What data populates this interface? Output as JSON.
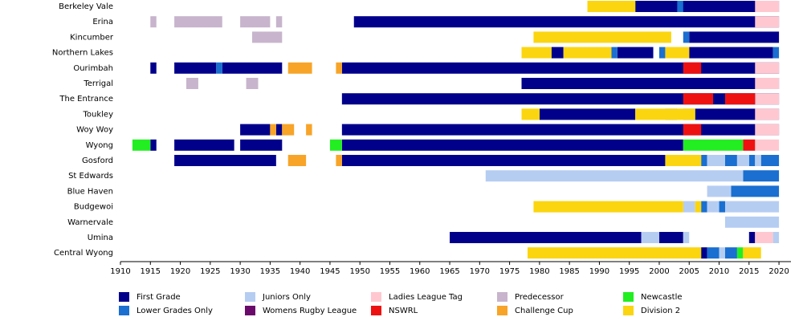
{
  "chart_data": {
    "type": "timeline",
    "categories": [
      "Berkeley Vale",
      "Erina",
      "Kincumber",
      "Northern Lakes",
      "Ourimbah",
      "Terrigal",
      "The Entrance",
      "Toukley",
      "Woy Woy",
      "Wyong",
      "Gosford",
      "St Edwards",
      "Blue Haven",
      "Budgewoi",
      "Warnervale",
      "Umina",
      "Central Wyong"
    ],
    "xlim": [
      1910,
      2022
    ],
    "xticks": [
      1910,
      1915,
      1920,
      1925,
      1930,
      1935,
      1940,
      1945,
      1950,
      1955,
      1960,
      1965,
      1970,
      1975,
      1980,
      1985,
      1990,
      1995,
      2000,
      2005,
      2010,
      2015,
      2020
    ],
    "series": [
      {
        "name": "First Grade",
        "color": "#00008b",
        "values": [
          [
            [
              1996,
              2020
            ]
          ],
          [
            [
              1949,
              2020
            ]
          ],
          [
            [
              2005,
              2020
            ]
          ],
          [
            [
              1982,
              1984
            ],
            [
              1993,
              1999
            ],
            [
              2005,
              2019
            ]
          ],
          [
            [
              1915,
              1916
            ],
            [
              1919,
              1926
            ],
            [
              1927,
              1937
            ],
            [
              1947,
              2020
            ]
          ],
          [
            [
              1977,
              2020
            ]
          ],
          [
            [
              1947,
              2020
            ]
          ],
          [
            [
              1980,
              1996
            ],
            [
              2006,
              2020
            ]
          ],
          [
            [
              1930,
              1935
            ],
            [
              1936,
              1937
            ],
            [
              1947,
              2020
            ]
          ],
          [
            [
              1915,
              1916
            ],
            [
              1919,
              1929
            ],
            [
              1930,
              1937
            ],
            [
              1947,
              2004
            ]
          ],
          [
            [
              1919,
              1936
            ],
            [
              1947,
              2001
            ]
          ],
          [],
          [],
          [],
          [],
          [
            [
              1965,
              1997
            ],
            [
              2000,
              2004
            ],
            [
              2015,
              2016
            ]
          ],
          [
            [
              2007,
              2008
            ]
          ]
        ]
      },
      {
        "name": "Lower Grades Only",
        "color": "#1a6fd0",
        "values": [
          [
            [
              2003,
              2004
            ]
          ],
          [],
          [
            [
              2004,
              2005
            ]
          ],
          [
            [
              1992,
              1993
            ],
            [
              2000,
              2001
            ],
            [
              2019,
              2020
            ]
          ],
          [
            [
              1926,
              1927
            ]
          ],
          [],
          [],
          [
            [
              2001,
              2003
            ],
            [
              2004,
              2006
            ]
          ],
          [],
          [],
          [
            [
              2007,
              2008
            ],
            [
              2011,
              2013
            ],
            [
              2015,
              2016
            ],
            [
              2017,
              2020
            ]
          ],
          [
            [
              2014,
              2020
            ]
          ],
          [
            [
              2012,
              2020
            ]
          ],
          [
            [
              2007,
              2008
            ],
            [
              2010,
              2011
            ]
          ],
          [],
          [],
          [
            [
              2008,
              2010
            ],
            [
              2011,
              2013
            ]
          ]
        ]
      },
      {
        "name": "Juniors Only",
        "color": "#b6cdf2",
        "values": [
          [],
          [],
          [],
          [],
          [],
          [],
          [],
          [],
          [],
          [],
          [
            [
              2008,
              2011
            ],
            [
              2013,
              2015
            ],
            [
              2016,
              2017
            ]
          ],
          [
            [
              1971,
              2014
            ]
          ],
          [
            [
              2008,
              2012
            ]
          ],
          [
            [
              2004,
              2006
            ],
            [
              2008,
              2010
            ],
            [
              2011,
              2020
            ]
          ],
          [
            [
              2011,
              2020
            ]
          ],
          [
            [
              1997,
              2000
            ],
            [
              2004,
              2005
            ],
            [
              2019,
              2020
            ]
          ],
          [
            [
              2010,
              2011
            ]
          ]
        ]
      },
      {
        "name": "Womens Rugby League",
        "color": "#6a0a6a",
        "values": [
          [],
          [],
          [],
          [],
          [],
          [],
          [],
          [],
          [],
          [],
          [],
          [],
          [],
          [],
          [],
          [],
          []
        ]
      },
      {
        "name": "Ladies League Tag",
        "color": "#ffc8d0",
        "values": [
          [
            [
              2016,
              2020
            ]
          ],
          [
            [
              2016,
              2020
            ]
          ],
          [],
          [],
          [
            [
              2016,
              2020
            ]
          ],
          [
            [
              2016,
              2020
            ]
          ],
          [
            [
              2016,
              2020
            ]
          ],
          [
            [
              2016,
              2020
            ]
          ],
          [
            [
              2016,
              2020
            ]
          ],
          [
            [
              2016,
              2020
            ]
          ],
          [],
          [],
          [],
          [],
          [],
          [
            [
              2016,
              2019
            ]
          ],
          []
        ]
      },
      {
        "name": "NSWRL",
        "color": "#ee1111",
        "values": [
          [],
          [],
          [],
          [],
          [
            [
              2004,
              2007
            ]
          ],
          [],
          [
            [
              2004,
              2009
            ],
            [
              2011,
              2016
            ]
          ],
          [],
          [
            [
              2004,
              2007
            ]
          ],
          [
            [
              2014,
              2016
            ]
          ],
          [],
          [],
          [],
          [],
          [],
          [],
          []
        ]
      },
      {
        "name": "Predecessor",
        "color": "#c8b4cc",
        "values": [
          [],
          [
            [
              1915,
              1916
            ],
            [
              1919,
              1927
            ],
            [
              1930,
              1935
            ],
            [
              1936,
              1937
            ]
          ],
          [
            [
              1932,
              1937
            ]
          ],
          [],
          [],
          [
            [
              1921,
              1923
            ],
            [
              1931,
              1933
            ]
          ],
          [],
          [],
          [],
          [],
          [],
          [],
          [],
          [],
          [],
          [],
          []
        ]
      },
      {
        "name": "Challenge Cup",
        "color": "#f7a428",
        "values": [
          [],
          [],
          [],
          [],
          [
            [
              1938,
              1942
            ],
            [
              1946,
              1947
            ]
          ],
          [],
          [],
          [],
          [
            [
              1935,
              1936
            ],
            [
              1937,
              1939
            ],
            [
              1941,
              1942
            ]
          ],
          [],
          [
            [
              1938,
              1941
            ],
            [
              1946,
              1947
            ]
          ],
          [],
          [],
          [],
          [],
          [],
          []
        ]
      },
      {
        "name": "Newcastle",
        "color": "#22ee22",
        "values": [
          [],
          [],
          [],
          [],
          [],
          [],
          [],
          [],
          [],
          [
            [
              1912,
              1915
            ],
            [
              1945,
              1947
            ],
            [
              2004,
              2014
            ]
          ],
          [],
          [],
          [],
          [],
          [],
          [],
          [
            [
              2013,
              2014
            ]
          ]
        ]
      },
      {
        "name": "Division 2",
        "color": "#fbd50f",
        "values": [
          [
            [
              1988,
              1996
            ]
          ],
          [],
          [
            [
              1979,
              2002
            ]
          ],
          [
            [
              1977,
              1982
            ],
            [
              1984,
              1992
            ],
            [
              2001,
              2005
            ]
          ],
          [],
          [],
          [],
          [
            [
              1977,
              1980
            ],
            [
              1996,
              2006
            ]
          ],
          [],
          [],
          [
            [
              2001,
              2007
            ]
          ],
          [],
          [],
          [
            [
              1979,
              2004
            ],
            [
              2006,
              2007
            ]
          ],
          [],
          [],
          [
            [
              1978,
              2007
            ],
            [
              2014,
              2017
            ]
          ]
        ]
      }
    ]
  }
}
